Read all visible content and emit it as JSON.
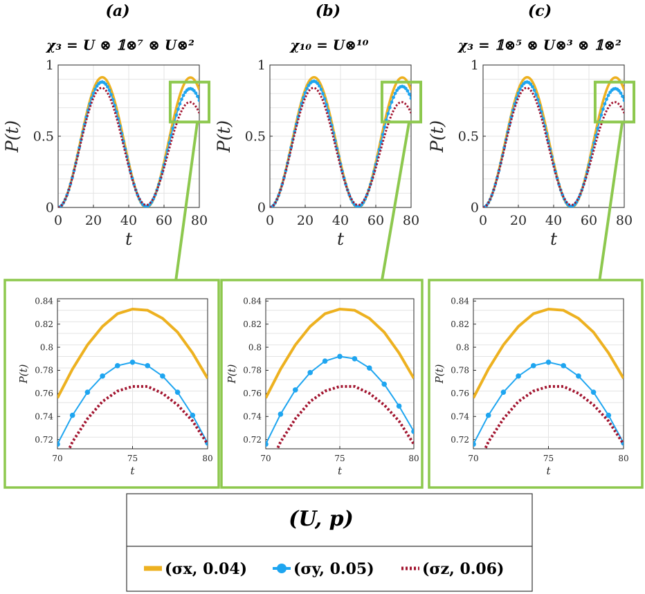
{
  "panels": [
    {
      "label": "(a)",
      "title": "χ₃ = U ⊗ 𝟙⊗⁷ ⊗ U⊗²"
    },
    {
      "label": "(b)",
      "title": "χ₁₀ = U⊗¹⁰"
    },
    {
      "label": "(c)",
      "title": "χ₃ = 𝟙⊗⁵ ⊗ U⊗³ ⊗ 𝟙⊗²"
    }
  ],
  "legend": {
    "title": "(U, p)",
    "entries": [
      {
        "label": "(σx, 0.04)",
        "color": "#EDB120",
        "style": "solid-thick"
      },
      {
        "label": "(σy, 0.05)",
        "color": "#1EA5F0",
        "style": "line-dot"
      },
      {
        "label": "(σz, 0.06)",
        "color": "#A2142F",
        "style": "dotted"
      }
    ]
  },
  "colors": {
    "zoom_box": "#8DC84E",
    "grid": "#e3e3e3"
  },
  "chart_data": [
    {
      "type": "line",
      "panel": "a",
      "xlabel": "t",
      "ylabel": "P(t)",
      "xlim": [
        0,
        80
      ],
      "ylim": [
        0,
        1
      ],
      "xticks": [
        "0",
        "20",
        "40",
        "60",
        "80"
      ],
      "yticks": [
        "0",
        "0.5",
        "1"
      ],
      "grid": true,
      "series": [
        {
          "name": "(σx, 0.04)",
          "amplitude": 0.915,
          "decay": 0.999
        },
        {
          "name": "(σy, 0.05)",
          "amplitude": 0.905,
          "decay": 0.969
        },
        {
          "name": "(σz, 0.06)",
          "amplitude": 0.895,
          "decay": 0.928
        }
      ]
    },
    {
      "type": "line",
      "panel": "b",
      "xlabel": "t",
      "ylabel": "P(t)",
      "xlim": [
        0,
        80
      ],
      "ylim": [
        0,
        1
      ],
      "xticks": [
        "0",
        "20",
        "40",
        "60",
        "80"
      ],
      "yticks": [
        "0",
        "0.5",
        "1"
      ],
      "grid": true,
      "series": [
        {
          "name": "(σx, 0.04)",
          "amplitude": 0.915,
          "decay": 0.999
        },
        {
          "name": "(σy, 0.05)",
          "amplitude": 0.905,
          "decay": 0.976
        },
        {
          "name": "(σz, 0.06)",
          "amplitude": 0.895,
          "decay": 0.928
        }
      ]
    },
    {
      "type": "line",
      "panel": "c",
      "xlabel": "t",
      "ylabel": "P(t)",
      "xlim": [
        0,
        80
      ],
      "ylim": [
        0,
        1
      ],
      "xticks": [
        "0",
        "20",
        "40",
        "60",
        "80"
      ],
      "yticks": [
        "0",
        "0.5",
        "1"
      ],
      "grid": true,
      "series": [
        {
          "name": "(σx, 0.04)",
          "amplitude": 0.915,
          "decay": 0.999
        },
        {
          "name": "(σy, 0.05)",
          "amplitude": 0.905,
          "decay": 0.969
        },
        {
          "name": "(σz, 0.06)",
          "amplitude": 0.895,
          "decay": 0.928
        }
      ]
    },
    {
      "type": "line",
      "panel": "a-zoom",
      "xlabel": "t",
      "ylabel": "P(t)",
      "xlim": [
        70,
        80
      ],
      "ylim": [
        0.712,
        0.842
      ],
      "xticks": [
        "70",
        "75",
        "80"
      ],
      "yticks": [
        "0.72",
        "0.74",
        "0.76",
        "0.78",
        "0.8",
        "0.82",
        "0.84"
      ],
      "grid": true,
      "x": [
        70,
        71,
        72,
        73,
        74,
        75,
        76,
        77,
        78,
        79,
        80
      ],
      "series": [
        {
          "name": "(σx, 0.04)",
          "values": [
            0.756,
            0.781,
            0.802,
            0.818,
            0.829,
            0.833,
            0.832,
            0.825,
            0.813,
            0.795,
            0.773
          ]
        },
        {
          "name": "(σy, 0.05)",
          "values": [
            0.716,
            0.741,
            0.761,
            0.775,
            0.784,
            0.787,
            0.784,
            0.775,
            0.761,
            0.741,
            0.717
          ]
        },
        {
          "name": "(σz, 0.06)",
          "values": [
            0.69,
            0.718,
            0.738,
            0.753,
            0.762,
            0.766,
            0.766,
            0.76,
            0.75,
            0.736,
            0.716
          ]
        }
      ]
    },
    {
      "type": "line",
      "panel": "b-zoom",
      "xlabel": "t",
      "ylabel": "P(t)",
      "xlim": [
        70,
        80
      ],
      "ylim": [
        0.712,
        0.842
      ],
      "xticks": [
        "70",
        "75",
        "80"
      ],
      "yticks": [
        "0.72",
        "0.74",
        "0.76",
        "0.78",
        "0.8",
        "0.82",
        "0.84"
      ],
      "grid": true,
      "x": [
        70,
        71,
        72,
        73,
        74,
        75,
        76,
        77,
        78,
        79,
        80
      ],
      "series": [
        {
          "name": "(σx, 0.04)",
          "values": [
            0.756,
            0.781,
            0.802,
            0.818,
            0.829,
            0.833,
            0.832,
            0.825,
            0.813,
            0.795,
            0.773
          ]
        },
        {
          "name": "(σy, 0.05)",
          "values": [
            0.716,
            0.742,
            0.763,
            0.778,
            0.788,
            0.792,
            0.79,
            0.782,
            0.768,
            0.749,
            0.727
          ]
        },
        {
          "name": "(σz, 0.06)",
          "values": [
            0.69,
            0.718,
            0.738,
            0.753,
            0.762,
            0.766,
            0.766,
            0.76,
            0.75,
            0.736,
            0.716
          ]
        }
      ]
    },
    {
      "type": "line",
      "panel": "c-zoom",
      "xlabel": "t",
      "ylabel": "P(t)",
      "xlim": [
        70,
        80
      ],
      "ylim": [
        0.712,
        0.842
      ],
      "xticks": [
        "70",
        "75",
        "80"
      ],
      "yticks": [
        "0.72",
        "0.74",
        "0.76",
        "0.78",
        "0.8",
        "0.82",
        "0.84"
      ],
      "grid": true,
      "x": [
        70,
        71,
        72,
        73,
        74,
        75,
        76,
        77,
        78,
        79,
        80
      ],
      "series": [
        {
          "name": "(σx, 0.04)",
          "values": [
            0.756,
            0.781,
            0.802,
            0.818,
            0.829,
            0.833,
            0.832,
            0.825,
            0.813,
            0.795,
            0.773
          ]
        },
        {
          "name": "(σy, 0.05)",
          "values": [
            0.716,
            0.741,
            0.761,
            0.775,
            0.784,
            0.787,
            0.784,
            0.775,
            0.761,
            0.741,
            0.717
          ]
        },
        {
          "name": "(σz, 0.06)",
          "values": [
            0.69,
            0.718,
            0.738,
            0.753,
            0.762,
            0.766,
            0.766,
            0.76,
            0.75,
            0.736,
            0.716
          ]
        }
      ]
    }
  ]
}
